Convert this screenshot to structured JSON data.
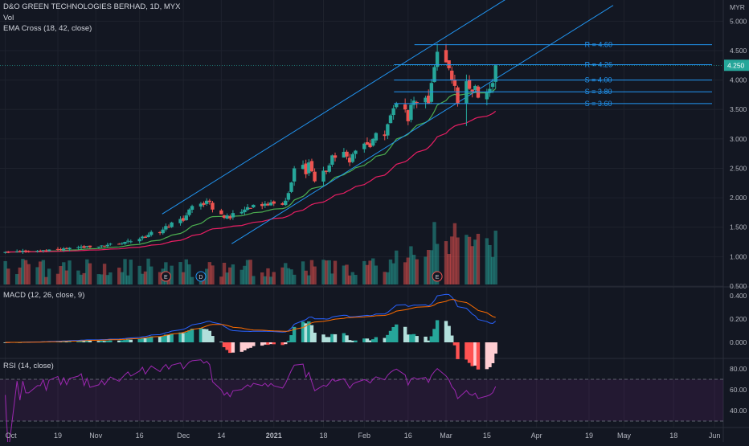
{
  "header": {
    "title": "D&O GREEN TECHNOLOGIES BERHAD, 1D, MYX",
    "vol_label": "Vol",
    "ema_label": "EMA Cross (18, 42, close)"
  },
  "price_axis": {
    "currency": "MYR",
    "ticks": [
      "5.000",
      "4.500",
      "4.000",
      "3.500",
      "3.000",
      "2.500",
      "2.000",
      "1.500",
      "1.000",
      "0.500"
    ],
    "last_price": "4.250"
  },
  "levels": [
    {
      "label": "R = 4.60",
      "value": 4.6
    },
    {
      "label": "R = 4.26",
      "value": 4.26
    },
    {
      "label": "S = 4.00",
      "value": 4.0
    },
    {
      "label": "S = 3.80",
      "value": 3.8
    },
    {
      "label": "S = 3.60",
      "value": 3.6
    }
  ],
  "events": [
    {
      "label": "E",
      "date": "Nov 25"
    },
    {
      "label": "D",
      "date": "Dec 7"
    },
    {
      "label": "E",
      "date": "Feb 26"
    }
  ],
  "time_axis": {
    "labels": [
      "Oct",
      "19",
      "Nov",
      "16",
      "Dec",
      "14",
      "2021",
      "18",
      "Feb",
      "16",
      "Mar",
      "15",
      "Apr",
      "19",
      "May",
      "18",
      "Jun"
    ]
  },
  "macd": {
    "title": "MACD (12, 26, close, 9)",
    "ticks": [
      "0.400",
      "0.200",
      "0.000"
    ]
  },
  "rsi": {
    "title": "RSI (14, close)",
    "ticks": [
      "80.00",
      "60.00",
      "40.00"
    ]
  },
  "colors": {
    "background": "#131722",
    "up": "#26a69a",
    "down": "#ef5350",
    "channel": "#2196f3",
    "ema_fast": "#4caf50",
    "ema_slow": "#e91e63",
    "macd_line": "#2962ff",
    "signal_line": "#ff6d00",
    "rsi": "#9c27b0"
  },
  "chart_data": [
    {
      "type": "candlestick",
      "title": "D&O GREEN TECHNOLOGIES BERHAD, 1D, MYX",
      "y_unit": "MYR",
      "ylim": [
        0.5,
        5.25
      ],
      "x_range": [
        "Sep 30",
        "Jun 4"
      ],
      "start_date": "Oct 1",
      "close": [
        1.08,
        1.07,
        1.09,
        1.08,
        1.1,
        1.09,
        1.09,
        1.1,
        1.1,
        1.11,
        1.1,
        1.12,
        1.13,
        1.12,
        1.14,
        1.13,
        1.15,
        1.16,
        1.17,
        1.15,
        1.18,
        1.16,
        1.17,
        1.19,
        1.18,
        1.2,
        1.22,
        1.21,
        1.23,
        1.25,
        1.27,
        1.26,
        1.3,
        1.34,
        1.32,
        1.37,
        1.42,
        1.4,
        1.46,
        1.52,
        1.5,
        1.58,
        1.64,
        1.61,
        1.7,
        1.8,
        1.86,
        1.9,
        1.88,
        1.95,
        1.93,
        1.8,
        1.72,
        1.66,
        1.7,
        1.65,
        1.74,
        1.76,
        1.8,
        1.84,
        1.82,
        1.88,
        1.86,
        1.9,
        1.87,
        1.92,
        1.9,
        1.88,
        1.95,
        2.08,
        2.26,
        2.5,
        2.56,
        2.4,
        2.6,
        2.45,
        2.28,
        2.46,
        2.44,
        2.55,
        2.72,
        2.68,
        2.78,
        2.7,
        2.6,
        2.74,
        2.8,
        2.92,
        2.9,
        2.86,
        3.0,
        3.1,
        3.05,
        3.25,
        3.4,
        3.52,
        3.6,
        3.5,
        3.3,
        3.58,
        3.65,
        3.62,
        3.7,
        3.6,
        3.95,
        4.22,
        4.48,
        4.3,
        4.2,
        4.0,
        3.9,
        3.6,
        3.98,
        3.85,
        3.8,
        3.9,
        3.7,
        3.8,
        3.85,
        3.95,
        4.25
      ],
      "volume_range": [
        0,
        6400000
      ],
      "ema_periods": [
        18,
        42
      ]
    },
    {
      "type": "line",
      "title": "MACD (12, 26, close, 9)",
      "series": [
        {
          "name": "MACD",
          "values": []
        },
        {
          "name": "Signal",
          "values": []
        },
        {
          "name": "Histogram",
          "values": []
        }
      ],
      "ylim": [
        -0.1,
        0.45
      ]
    },
    {
      "type": "line",
      "title": "RSI (14, close)",
      "series": [
        {
          "name": "RSI",
          "values": []
        }
      ],
      "bands": [
        30,
        70
      ],
      "ylim": [
        25,
        90
      ]
    }
  ]
}
